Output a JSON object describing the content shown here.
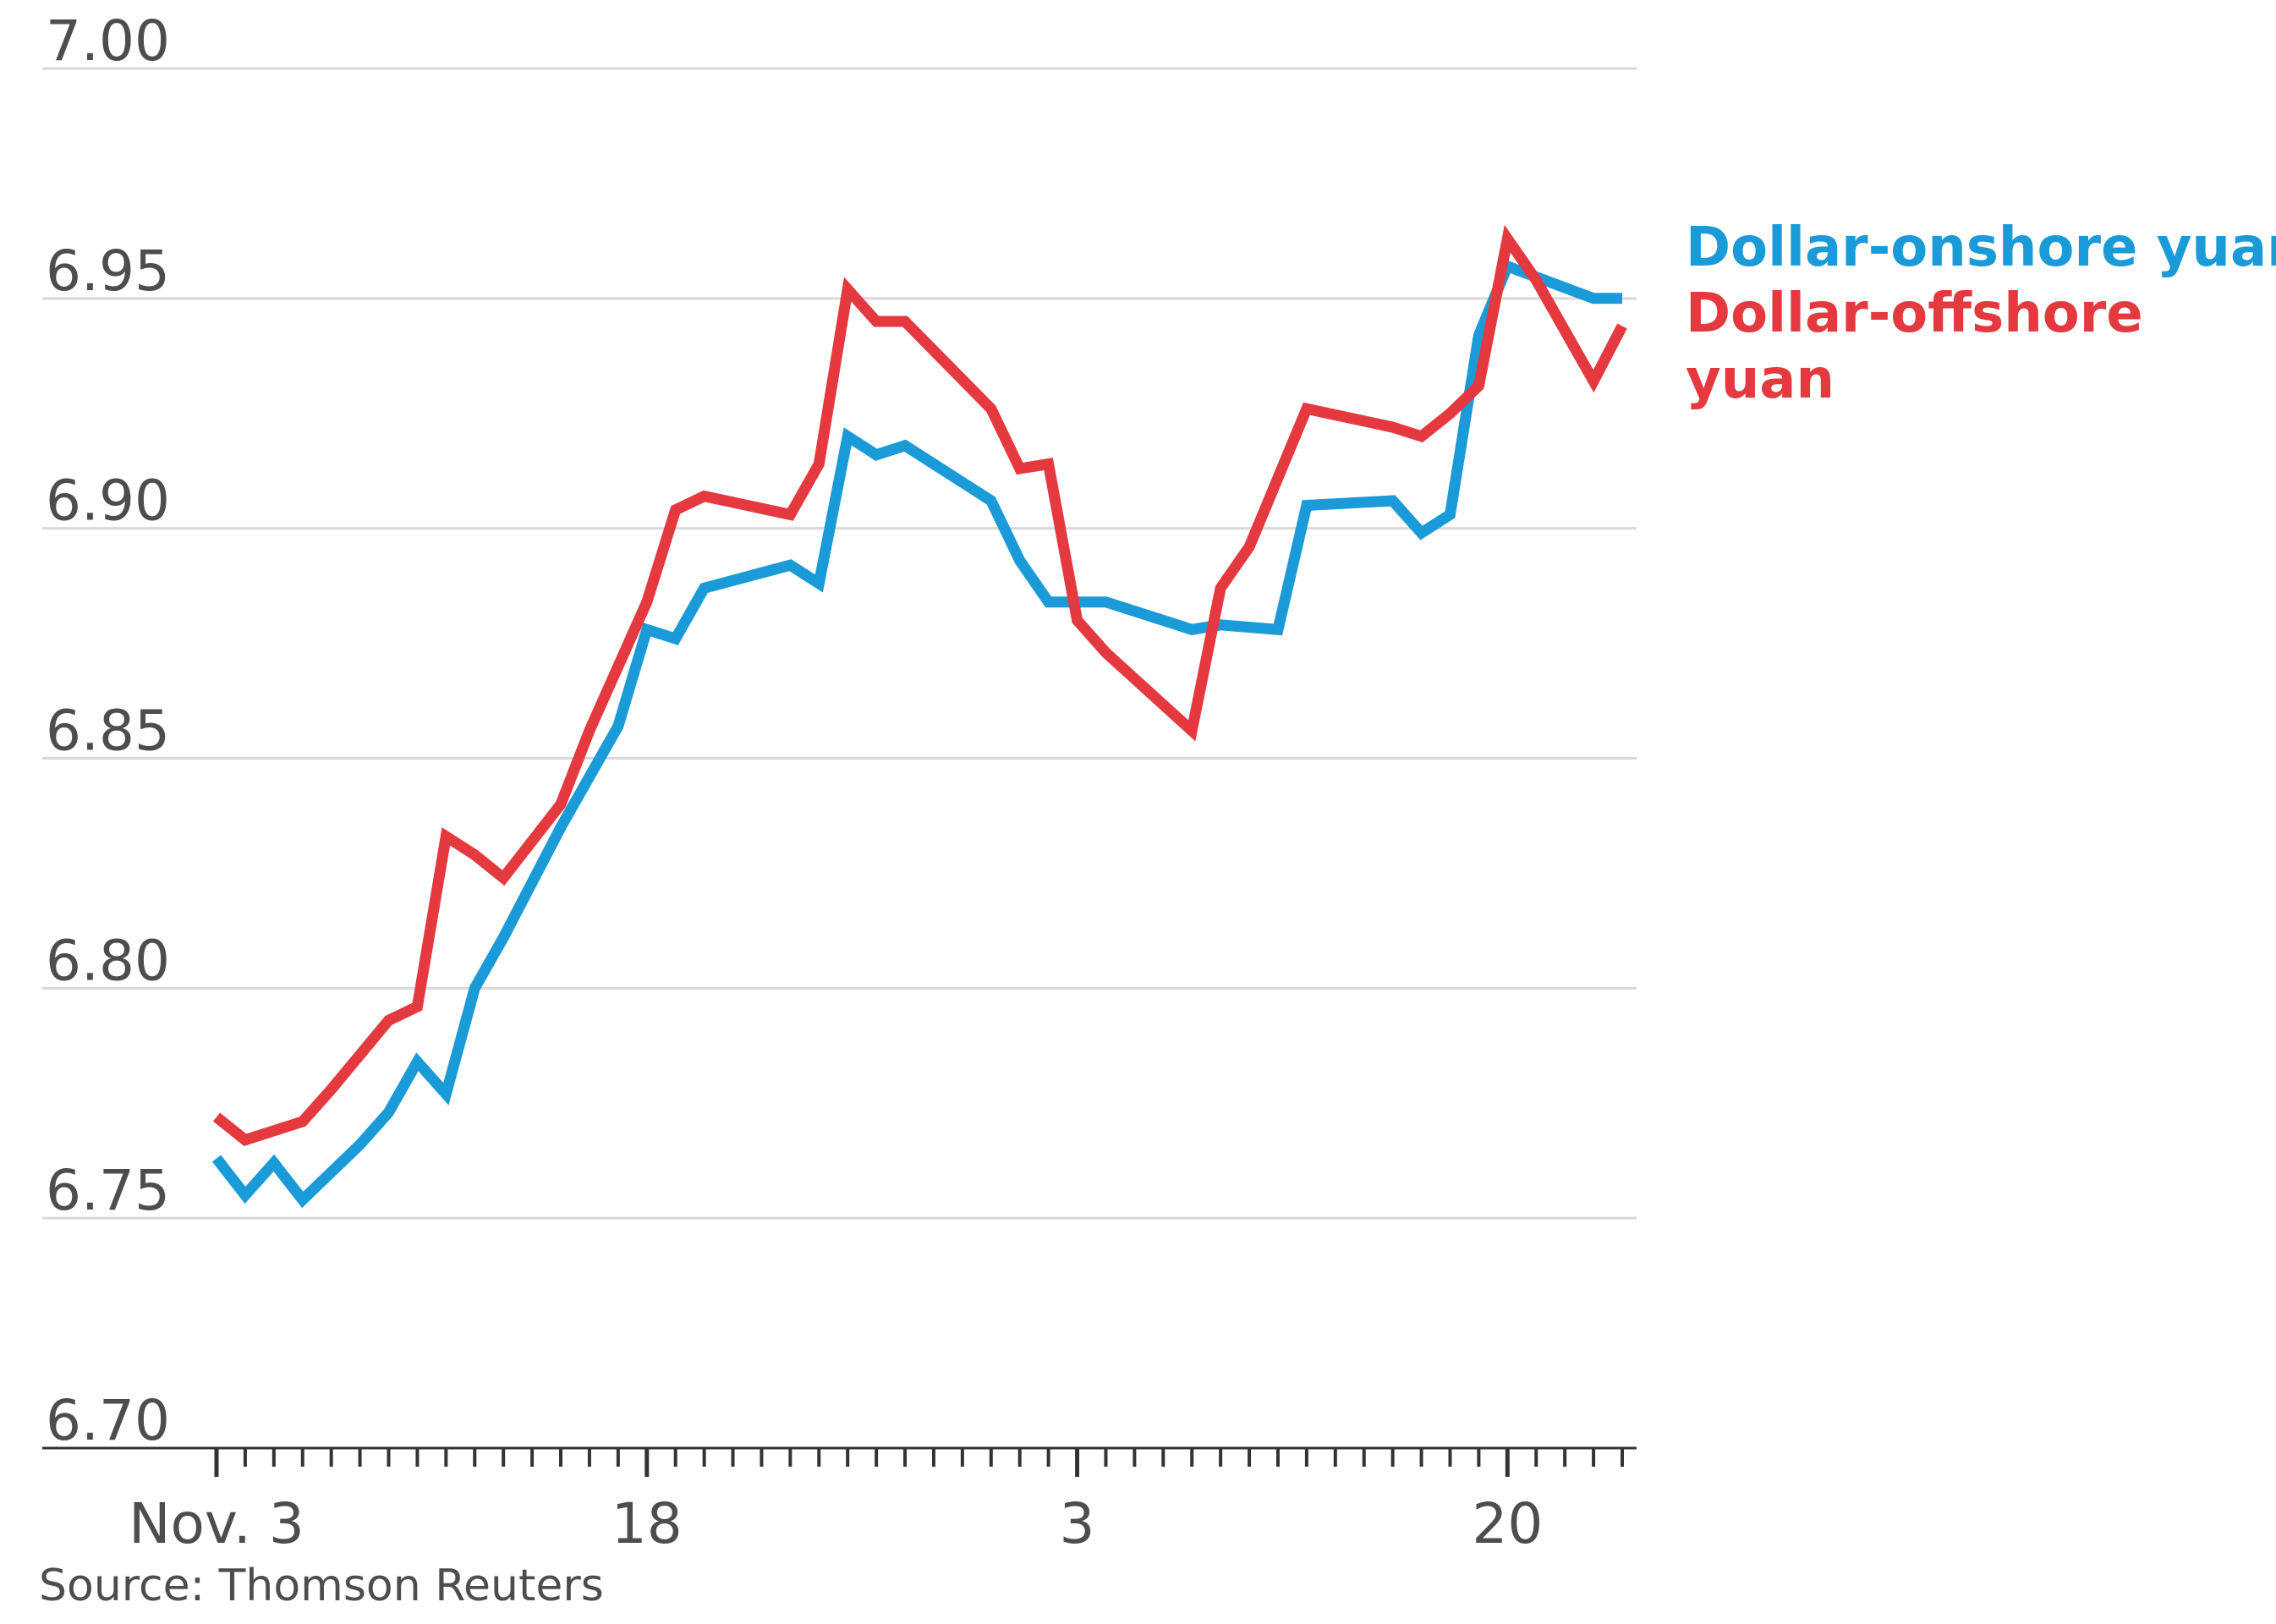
{
  "chart_data": {
    "type": "line",
    "ylim": [
      6.7,
      7.0
    ],
    "yticks": [
      "7.00",
      "6.95",
      "6.90",
      "6.85",
      "6.80",
      "6.75",
      "6.70"
    ],
    "ytick_values": [
      7.0,
      6.95,
      6.9,
      6.85,
      6.8,
      6.75,
      6.7
    ],
    "xtick_labels": [
      "Nov. 3",
      "18",
      "3",
      "20"
    ],
    "xtick_index": [
      0,
      15,
      30,
      45
    ],
    "num_days": 50,
    "grid": true,
    "legend_position": "right",
    "source": "Source: Thomson Reuters",
    "series": [
      {
        "name": "Dollar-onshore yuan",
        "color": "#1a9bd7",
        "points": [
          [
            0,
            6.763
          ],
          [
            1,
            6.755
          ],
          [
            2,
            6.762
          ],
          [
            3,
            6.754
          ],
          [
            5,
            6.766
          ],
          [
            6,
            6.773
          ],
          [
            7,
            6.784
          ],
          [
            8,
            6.777
          ],
          [
            9,
            6.8
          ],
          [
            10,
            6.811
          ],
          [
            12,
            6.835
          ],
          [
            14,
            6.857
          ],
          [
            15,
            6.878
          ],
          [
            16,
            6.876
          ],
          [
            17,
            6.887
          ],
          [
            20,
            6.892
          ],
          [
            21,
            6.888
          ],
          [
            22,
            6.92
          ],
          [
            23,
            6.916
          ],
          [
            24,
            6.918
          ],
          [
            27,
            6.906
          ],
          [
            28,
            6.893
          ],
          [
            29,
            6.884
          ],
          [
            31,
            6.884
          ],
          [
            34,
            6.878
          ],
          [
            35,
            6.879
          ],
          [
            37,
            6.878
          ],
          [
            38,
            6.905
          ],
          [
            41,
            6.906
          ],
          [
            42,
            6.899
          ],
          [
            43,
            6.903
          ],
          [
            44,
            6.942
          ],
          [
            45,
            6.957
          ],
          [
            48,
            6.95
          ],
          [
            49,
            6.95
          ]
        ]
      },
      {
        "name": "Dollar-offshore yuan",
        "color": "#e4393f",
        "points": [
          [
            0,
            6.772
          ],
          [
            1,
            6.767
          ],
          [
            3,
            6.771
          ],
          [
            4,
            6.778
          ],
          [
            6,
            6.793
          ],
          [
            7,
            6.796
          ],
          [
            8,
            6.833
          ],
          [
            9,
            6.829
          ],
          [
            10,
            6.824
          ],
          [
            12,
            6.84
          ],
          [
            13,
            6.856
          ],
          [
            15,
            6.884
          ],
          [
            16,
            6.904
          ],
          [
            17,
            6.907
          ],
          [
            20,
            6.903
          ],
          [
            21,
            6.914
          ],
          [
            22,
            6.952
          ],
          [
            23,
            6.945
          ],
          [
            24,
            6.945
          ],
          [
            27,
            6.926
          ],
          [
            28,
            6.913
          ],
          [
            29,
            6.914
          ],
          [
            30,
            6.88
          ],
          [
            31,
            6.873
          ],
          [
            34,
            6.856
          ],
          [
            35,
            6.887
          ],
          [
            36,
            6.896
          ],
          [
            38,
            6.926
          ],
          [
            41,
            6.922
          ],
          [
            42,
            6.92
          ],
          [
            43,
            6.925
          ],
          [
            44,
            6.931
          ],
          [
            45,
            6.963
          ],
          [
            46,
            6.954
          ],
          [
            48,
            6.932
          ],
          [
            49,
            6.944
          ]
        ]
      }
    ]
  },
  "legend": {
    "onshore_label": "Dollar-onshore yuan",
    "offshore_label_line1": "Dollar-offshore",
    "offshore_label_line2": "yuan"
  }
}
